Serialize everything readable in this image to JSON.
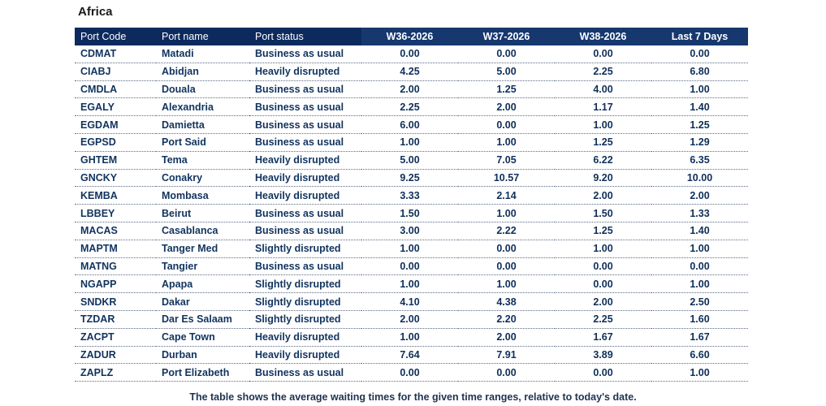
{
  "region": "Africa",
  "columns": {
    "code": "Port Code",
    "name": "Port name",
    "status": "Port status",
    "w1": "W36-2026",
    "w2": "W37-2026",
    "w3": "W38-2026",
    "last7": "Last 7 Days"
  },
  "rows": [
    {
      "code": "CDMAT",
      "name": "Matadi",
      "status": "Business as usual",
      "w1": "0.00",
      "w2": "0.00",
      "w3": "0.00",
      "last7": "0.00"
    },
    {
      "code": "CIABJ",
      "name": "Abidjan",
      "status": "Heavily disrupted",
      "w1": "4.25",
      "w2": "5.00",
      "w3": "2.25",
      "last7": "6.80"
    },
    {
      "code": "CMDLA",
      "name": "Douala",
      "status": "Business as usual",
      "w1": "2.00",
      "w2": "1.25",
      "w3": "4.00",
      "last7": "1.00"
    },
    {
      "code": "EGALY",
      "name": "Alexandria",
      "status": "Business as usual",
      "w1": "2.25",
      "w2": "2.00",
      "w3": "1.17",
      "last7": "1.40"
    },
    {
      "code": "EGDAM",
      "name": "Damietta",
      "status": "Business as usual",
      "w1": "6.00",
      "w2": "0.00",
      "w3": "1.00",
      "last7": "1.25"
    },
    {
      "code": "EGPSD",
      "name": "Port Said",
      "status": "Business as usual",
      "w1": "1.00",
      "w2": "1.00",
      "w3": "1.25",
      "last7": "1.29"
    },
    {
      "code": "GHTEM",
      "name": "Tema",
      "status": "Heavily disrupted",
      "w1": "5.00",
      "w2": "7.05",
      "w3": "6.22",
      "last7": "6.35"
    },
    {
      "code": "GNCKY",
      "name": "Conakry",
      "status": "Heavily disrupted",
      "w1": "9.25",
      "w2": "10.57",
      "w3": "9.20",
      "last7": "10.00"
    },
    {
      "code": "KEMBA",
      "name": "Mombasa",
      "status": "Heavily disrupted",
      "w1": "3.33",
      "w2": "2.14",
      "w3": "2.00",
      "last7": "2.00"
    },
    {
      "code": "LBBEY",
      "name": "Beirut",
      "status": "Business as usual",
      "w1": "1.50",
      "w2": "1.00",
      "w3": "1.50",
      "last7": "1.33"
    },
    {
      "code": "MACAS",
      "name": "Casablanca",
      "status": "Business as usual",
      "w1": "3.00",
      "w2": "2.22",
      "w3": "1.25",
      "last7": "1.40"
    },
    {
      "code": "MAPTM",
      "name": "Tanger Med",
      "status": "Slightly disrupted",
      "w1": "1.00",
      "w2": "0.00",
      "w3": "1.00",
      "last7": "1.00"
    },
    {
      "code": "MATNG",
      "name": "Tangier",
      "status": "Business as usual",
      "w1": "0.00",
      "w2": "0.00",
      "w3": "0.00",
      "last7": "0.00"
    },
    {
      "code": "NGAPP",
      "name": "Apapa",
      "status": "Slightly disrupted",
      "w1": "1.00",
      "w2": "1.00",
      "w3": "0.00",
      "last7": "1.00"
    },
    {
      "code": "SNDKR",
      "name": "Dakar",
      "status": "Slightly disrupted",
      "w1": "4.10",
      "w2": "4.38",
      "w3": "2.00",
      "last7": "2.50"
    },
    {
      "code": "TZDAR",
      "name": "Dar Es Salaam",
      "status": "Slightly disrupted",
      "w1": "2.00",
      "w2": "2.20",
      "w3": "2.25",
      "last7": "1.60"
    },
    {
      "code": "ZACPT",
      "name": "Cape Town",
      "status": "Heavily disrupted",
      "w1": "1.00",
      "w2": "2.00",
      "w3": "1.67",
      "last7": "1.67"
    },
    {
      "code": "ZADUR",
      "name": "Durban",
      "status": "Heavily disrupted",
      "w1": "7.64",
      "w2": "7.91",
      "w3": "3.89",
      "last7": "6.60"
    },
    {
      "code": "ZAPLZ",
      "name": "Port Elizabeth",
      "status": "Business as usual",
      "w1": "0.00",
      "w2": "0.00",
      "w3": "0.00",
      "last7": "1.00"
    }
  ],
  "caption": "The table shows the average waiting times for the given time ranges, relative to today's date.",
  "colors": {
    "header_dark": "#0d2a5e",
    "header_mid": "#16386f",
    "cell_text": "#11335f"
  }
}
